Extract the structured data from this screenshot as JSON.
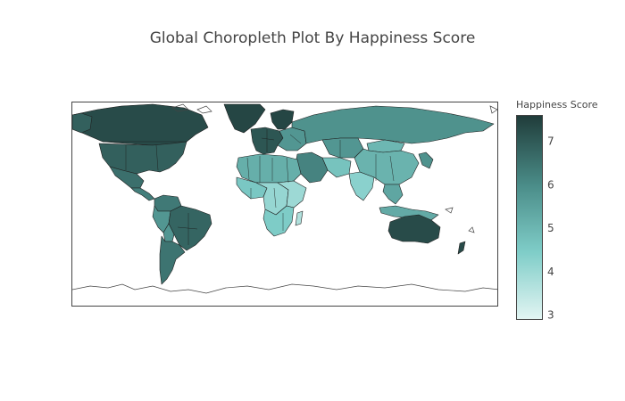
{
  "chart_data": {
    "type": "choropleth",
    "title": "Global Choropleth Plot By Happiness Score",
    "colorbar": {
      "title": "Happiness Score",
      "range": [
        2.9,
        7.6
      ],
      "ticks": [
        3,
        4,
        5,
        6,
        7
      ],
      "colorscale": [
        "#e3f5f3",
        "#7fcdc8",
        "#4a8c88",
        "#203c3a"
      ]
    },
    "regions": [
      {
        "name": "Canada",
        "value": 7.3
      },
      {
        "name": "United States",
        "value": 6.9
      },
      {
        "name": "Mexico",
        "value": 6.6
      },
      {
        "name": "Central America",
        "value": 6.3
      },
      {
        "name": "Greenland",
        "value": 7.4
      },
      {
        "name": "Alaska",
        "value": 6.9
      },
      {
        "name": "Colombia / Venezuela",
        "value": 6.4
      },
      {
        "name": "Brazil",
        "value": 6.8
      },
      {
        "name": "Peru / Ecuador",
        "value": 5.8
      },
      {
        "name": "Bolivia",
        "value": 5.8
      },
      {
        "name": "Argentina / Chile",
        "value": 6.5
      },
      {
        "name": "Western Europe",
        "value": 7.1
      },
      {
        "name": "Scandinavia",
        "value": 7.4
      },
      {
        "name": "Eastern Europe",
        "value": 5.8
      },
      {
        "name": "Russia",
        "value": 5.9
      },
      {
        "name": "Kazakhstan",
        "value": 5.8
      },
      {
        "name": "Mongolia",
        "value": 5.0
      },
      {
        "name": "China",
        "value": 5.1
      },
      {
        "name": "Middle East",
        "value": 6.2
      },
      {
        "name": "Iran / Afghanistan",
        "value": 4.7
      },
      {
        "name": "India",
        "value": 4.3
      },
      {
        "name": "Southeast Asia",
        "value": 5.4
      },
      {
        "name": "Indonesia",
        "value": 5.3
      },
      {
        "name": "Japan / Korea",
        "value": 5.9
      },
      {
        "name": "North Africa",
        "value": 5.2
      },
      {
        "name": "West Africa",
        "value": 4.6
      },
      {
        "name": "Central Africa",
        "value": 4.1
      },
      {
        "name": "East Africa",
        "value": 4.0
      },
      {
        "name": "Southern Africa",
        "value": 4.5
      },
      {
        "name": "Madagascar",
        "value": 3.7
      },
      {
        "name": "Australia",
        "value": 7.3
      },
      {
        "name": "New Zealand",
        "value": 7.3
      }
    ]
  }
}
